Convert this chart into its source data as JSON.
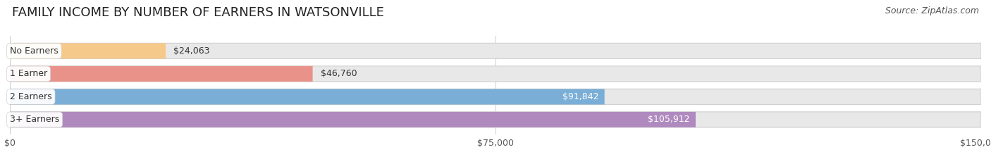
{
  "title": "FAMILY INCOME BY NUMBER OF EARNERS IN WATSONVILLE",
  "source": "Source: ZipAtlas.com",
  "categories": [
    "No Earners",
    "1 Earner",
    "2 Earners",
    "3+ Earners"
  ],
  "values": [
    24063,
    46760,
    91842,
    105912
  ],
  "labels": [
    "$24,063",
    "$46,760",
    "$91,842",
    "$105,912"
  ],
  "bar_colors": [
    "#f5c98a",
    "#e8928a",
    "#7aaed6",
    "#b08abf"
  ],
  "label_colors": [
    "#555555",
    "#555555",
    "#ffffff",
    "#ffffff"
  ],
  "background_color": "#ffffff",
  "bar_background_color": "#e8e8e8",
  "xlim": [
    0,
    150000
  ],
  "xticks": [
    0,
    75000,
    150000
  ],
  "xtick_labels": [
    "$0",
    "$75,000",
    "$150,000"
  ],
  "title_fontsize": 13,
  "source_fontsize": 9,
  "bar_label_fontsize": 9,
  "category_fontsize": 9,
  "xtick_fontsize": 9,
  "bar_height": 0.68,
  "bar_gap": 0.18
}
